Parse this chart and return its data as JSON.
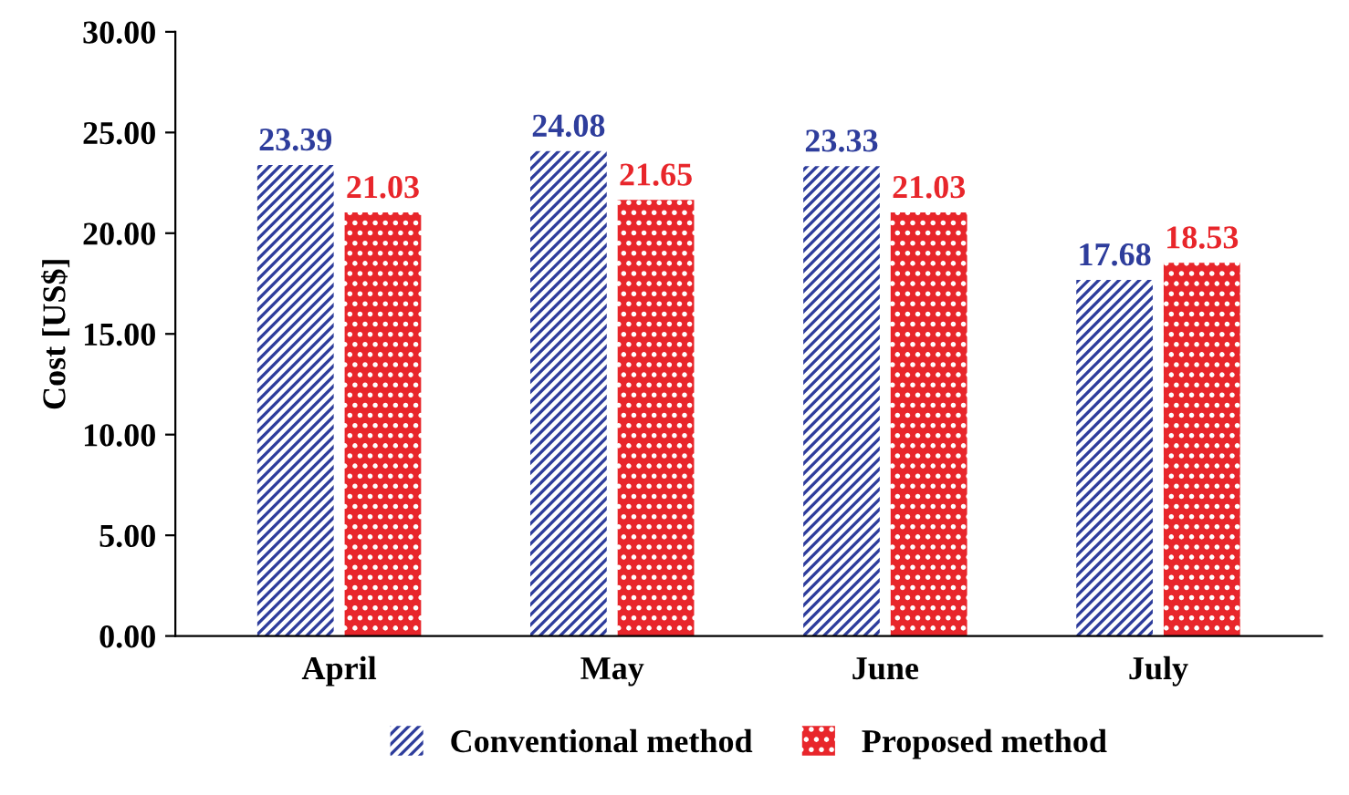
{
  "chart_data": {
    "type": "bar",
    "ylabel": "Cost [US$]",
    "categories": [
      "April",
      "May",
      "June",
      "July"
    ],
    "series": [
      {
        "name": "Conventional method",
        "color": "#2e3d9c",
        "values": [
          23.39,
          24.08,
          23.33,
          17.68
        ],
        "value_labels": [
          "23.39",
          "24.08",
          "23.33",
          "17.68"
        ]
      },
      {
        "name": "Proposed method",
        "color": "#e8262b",
        "values": [
          21.03,
          21.65,
          21.03,
          18.53
        ],
        "value_labels": [
          "21.03",
          "21.65",
          "21.03",
          "18.53"
        ]
      }
    ],
    "ylim": [
      0,
      30
    ],
    "yticks": [
      {
        "value": 0,
        "label": "0.00"
      },
      {
        "value": 5,
        "label": "5.00"
      },
      {
        "value": 10,
        "label": "10.00"
      },
      {
        "value": 15,
        "label": "15.00"
      },
      {
        "value": 20,
        "label": "20.00"
      },
      {
        "value": 25,
        "label": "25.00"
      },
      {
        "value": 30,
        "label": "30.00"
      }
    ],
    "grid": false,
    "legend": "bottom"
  }
}
